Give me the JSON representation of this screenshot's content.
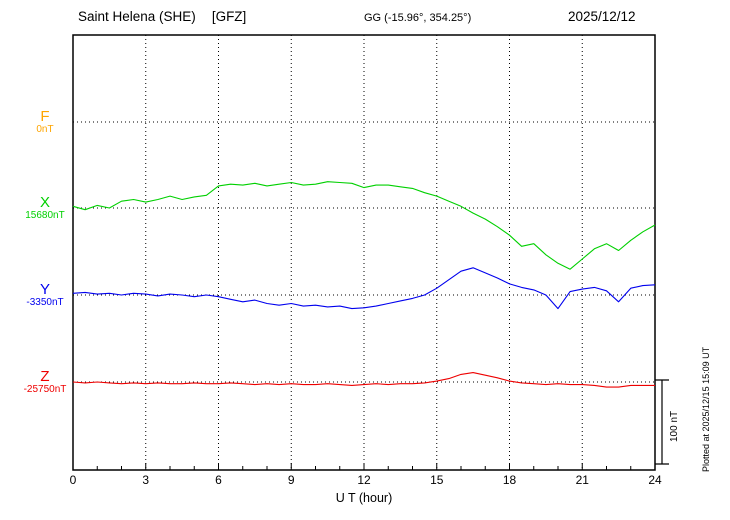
{
  "header": {
    "station_title": "Saint Helena (SHE)",
    "institute": "[GFZ]",
    "coordinates": "GG (-15.96°, 354.25°)",
    "date": "2025/12/12"
  },
  "footer": {
    "plotted_at": "Plotted at 2025/12/15 15:09 UT"
  },
  "chart_data": {
    "type": "line",
    "title": "Saint Helena (SHE) [GFZ] magnetogram 2025/12/12",
    "x": {
      "label": "U T (hour)",
      "min": 0,
      "max": 24,
      "ticks": [
        0,
        3,
        6,
        9,
        12,
        15,
        18,
        21,
        24
      ]
    },
    "sample_step_hours": 0.5,
    "scale_bar": {
      "label": "100 nT",
      "nT": 100
    },
    "grid": "dotted vertical lines every 3 h; dotted horizontal baseline per channel",
    "offset_unit": "nT",
    "series": [
      {
        "name": "F",
        "color": "#ffa500",
        "baseline_label": "0nT",
        "baseline_nT": 0,
        "values": []
      },
      {
        "name": "X",
        "color": "#00d000",
        "baseline_label": "15680nT",
        "baseline_nT": 15680,
        "values": [
          2,
          -2,
          3,
          0,
          8,
          10,
          7,
          10,
          14,
          10,
          13,
          15,
          26,
          28,
          27,
          29,
          26,
          28,
          30,
          27,
          28,
          31,
          30,
          29,
          24,
          27,
          27,
          25,
          23,
          18,
          14,
          8,
          2,
          -6,
          -13,
          -22,
          -32,
          -45,
          -42,
          -55,
          -65,
          -72,
          -60,
          -48,
          -42,
          -50,
          -38,
          -28,
          -20
        ]
      },
      {
        "name": "Y",
        "color": "#0000ee",
        "baseline_label": "-3350nT",
        "baseline_nT": -3350,
        "values": [
          2,
          3,
          1,
          2,
          0,
          2,
          1,
          -1,
          1,
          0,
          -2,
          0,
          -2,
          -5,
          -8,
          -6,
          -10,
          -12,
          -10,
          -13,
          -12,
          -14,
          -13,
          -16,
          -15,
          -13,
          -10,
          -7,
          -4,
          0,
          8,
          18,
          28,
          32,
          26,
          20,
          13,
          9,
          6,
          0,
          -16,
          4,
          7,
          9,
          5,
          -8,
          8,
          11,
          12
        ]
      },
      {
        "name": "Z",
        "color": "#ee0000",
        "baseline_label": "-25750nT",
        "baseline_nT": -25750,
        "values": [
          0,
          -1,
          0,
          -1,
          -2,
          -1,
          -2,
          -1,
          -2,
          -2,
          -1,
          -2,
          -2,
          -1,
          -2,
          -3,
          -2,
          -3,
          -2,
          -3,
          -3,
          -2,
          -3,
          -4,
          -3,
          -2,
          -3,
          -2,
          -2,
          -1,
          1,
          4,
          9,
          11,
          8,
          5,
          1,
          -1,
          -2,
          -3,
          -2,
          -3,
          -3,
          -4,
          -6,
          -6,
          -4,
          -4,
          -4
        ]
      }
    ]
  }
}
